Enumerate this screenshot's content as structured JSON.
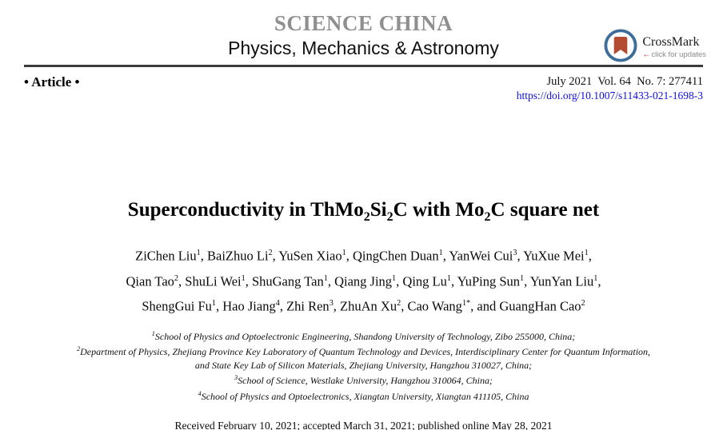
{
  "journal": {
    "name": "SCIENCE CHINA",
    "subtitle": "Physics, Mechanics & Astronomy"
  },
  "crossmark": {
    "label": "CrossMark",
    "arrow": "←",
    "sublabel": "click for updates"
  },
  "meta": {
    "article_type": "• Article •",
    "issue": "July 2021  Vol. 64  No. 7: 277411",
    "doi": "https://doi.org/10.1007/s11433-021-1698-3"
  },
  "title_segments": [
    {
      "t": "Superconductivity in ThMo"
    },
    {
      "t": "2",
      "sub": true
    },
    {
      "t": "Si"
    },
    {
      "t": "2",
      "sub": true
    },
    {
      "t": "C with Mo"
    },
    {
      "t": "2",
      "sub": true
    },
    {
      "t": "C square net"
    }
  ],
  "authors_lines": [
    [
      {
        "t": "ZiChen Liu"
      },
      {
        "t": "1",
        "sup": true
      },
      {
        "t": ", BaiZhuo Li"
      },
      {
        "t": "2",
        "sup": true
      },
      {
        "t": ", YuSen Xiao"
      },
      {
        "t": "1",
        "sup": true
      },
      {
        "t": ", QingChen Duan"
      },
      {
        "t": "1",
        "sup": true
      },
      {
        "t": ", YanWei Cui"
      },
      {
        "t": "3",
        "sup": true
      },
      {
        "t": ", YuXue Mei"
      },
      {
        "t": "1",
        "sup": true
      },
      {
        "t": ","
      }
    ],
    [
      {
        "t": "Qian Tao"
      },
      {
        "t": "2",
        "sup": true
      },
      {
        "t": ", ShuLi Wei"
      },
      {
        "t": "1",
        "sup": true
      },
      {
        "t": ", ShuGang Tan"
      },
      {
        "t": "1",
        "sup": true
      },
      {
        "t": ", Qiang Jing"
      },
      {
        "t": "1",
        "sup": true
      },
      {
        "t": ", Qing Lu"
      },
      {
        "t": "1",
        "sup": true
      },
      {
        "t": ", YuPing Sun"
      },
      {
        "t": "1",
        "sup": true
      },
      {
        "t": ", YunYan Liu"
      },
      {
        "t": "1",
        "sup": true
      },
      {
        "t": ","
      }
    ],
    [
      {
        "t": "ShengGui Fu"
      },
      {
        "t": "1",
        "sup": true
      },
      {
        "t": ", Hao Jiang"
      },
      {
        "t": "4",
        "sup": true
      },
      {
        "t": ", Zhi Ren"
      },
      {
        "t": "3",
        "sup": true
      },
      {
        "t": ", ZhuAn Xu"
      },
      {
        "t": "2",
        "sup": true
      },
      {
        "t": ", Cao Wang"
      },
      {
        "t": "1*",
        "sup": true
      },
      {
        "t": ", and GuangHan Cao"
      },
      {
        "t": "2",
        "sup": true
      }
    ]
  ],
  "affiliation_lines": [
    [
      {
        "t": "1",
        "sup": true
      },
      {
        "t": "School of Physics and Optoelectronic Engineering, Shandong University of Technology, Zibo 255000, China;"
      }
    ],
    [
      {
        "t": "2",
        "sup": true
      },
      {
        "t": "Department of Physics, Zhejiang Province Key Laboratory of Quantum Technology and Devices, Interdisciplinary Center for Quantum Information,"
      }
    ],
    [
      {
        "t": "and State Key Lab of Silicon Materials, Zhejiang University, Hangzhou 310027, China;"
      }
    ],
    [
      {
        "t": "3",
        "sup": true
      },
      {
        "t": "School of Science, Westlake University, Hangzhou 310064, China;"
      }
    ],
    [
      {
        "t": "4",
        "sup": true
      },
      {
        "t": "School of Physics and Optoelectronics, Xiangtan University, Xiangtan 411105, China"
      }
    ]
  ],
  "dates_line": "Received February 10, 2021; accepted March 31, 2021; published online May 28, 2021",
  "colors": {
    "journal_name": "#8f8f8f",
    "doi_link": "#0f10e0",
    "rule": "#3b3b3b",
    "crossmark_ring": "#3d6e99",
    "crossmark_bookmark": "#b34a32",
    "crossmark_arrow": "#cc2a1e",
    "crossmark_sublabel": "#8a8a8a"
  }
}
